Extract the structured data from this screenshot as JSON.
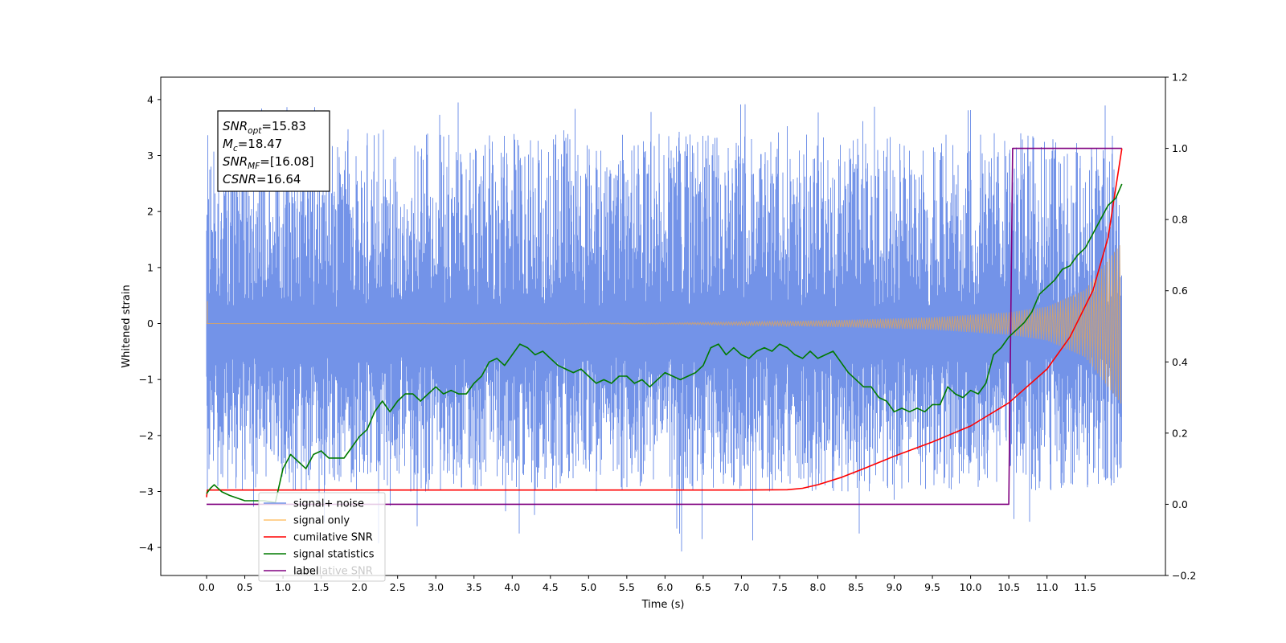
{
  "chart_data": {
    "type": "line",
    "xlabel": "Time (s)",
    "ylabel": "Whitened strain",
    "xlim": [
      -0.6,
      12.55
    ],
    "ylim": [
      -4.5,
      4.4
    ],
    "y2lim": [
      -0.2,
      1.2
    ],
    "x_ticks": [
      0.0,
      0.5,
      1.0,
      1.5,
      2.0,
      2.5,
      3.0,
      3.5,
      4.0,
      4.5,
      5.0,
      5.5,
      6.0,
      6.5,
      7.0,
      7.5,
      8.0,
      8.5,
      9.0,
      9.5,
      10.0,
      10.5,
      11.0,
      11.5
    ],
    "x_tick_labels": [
      "0.0",
      "0.5",
      "1.0",
      "1.5",
      "2.0",
      "2.5",
      "3.0",
      "3.5",
      "4.0",
      "4.5",
      "5.0",
      "5.5",
      "6.0",
      "6.5",
      "7.0",
      "7.5",
      "8.0",
      "8.5",
      "9.0",
      "9.5",
      "10.0",
      "10.5",
      "11.0",
      "11.5"
    ],
    "y_ticks": [
      -4,
      -3,
      -2,
      -1,
      0,
      1,
      2,
      3,
      4
    ],
    "y_tick_labels": [
      "−4",
      "−3",
      "−2",
      "−1",
      "0",
      "1",
      "2",
      "3",
      "4"
    ],
    "y2_ticks": [
      -0.2,
      0.0,
      0.2,
      0.4,
      0.6,
      0.8,
      1.0,
      1.2
    ],
    "y2_tick_labels": [
      "−0.2",
      "0.0",
      "0.2",
      "0.4",
      "0.6",
      "0.8",
      "1.0",
      "1.2"
    ],
    "annotation": {
      "lines": [
        {
          "main": "SNR",
          "sub": "opt",
          "rest": "=15.83"
        },
        {
          "main": "M",
          "sub": "c",
          "rest": "=18.47"
        },
        {
          "main": "SNR",
          "sub": "MF",
          "rest": "=[16.08]"
        },
        {
          "main": "CSNR",
          "sub": "",
          "rest": "=16.64"
        }
      ]
    },
    "legend": {
      "placement": "lower-left",
      "entries": [
        {
          "label": "signal+ noise",
          "color": "#7393e8"
        },
        {
          "label": "signal only",
          "color": "#ffc36e"
        },
        {
          "label": "cumilative SNR",
          "color": "#ff0000"
        },
        {
          "label": "signal statistics",
          "color": "#007a00"
        },
        {
          "label": "label",
          "color": "#800080"
        }
      ],
      "overlapped_text": "cumilative SNR"
    },
    "series": [
      {
        "name": "signal+ noise",
        "axis": "left",
        "color": "#7393e8",
        "noise_envelope": {
          "x": [
            0.0,
            11.98
          ],
          "low": -3.0,
          "high": 3.4,
          "peak_max": 4.0,
          "peak_min": -4.1
        }
      },
      {
        "name": "signal only",
        "axis": "left",
        "color": "#c8a07a",
        "chirp_envelope": {
          "x": [
            0,
            6,
            7.5,
            8.5,
            9.5,
            10.5,
            11.0,
            11.5,
            11.98
          ],
          "amp": [
            0.0,
            0.01,
            0.04,
            0.07,
            0.11,
            0.2,
            0.3,
            0.6,
            1.45
          ]
        }
      },
      {
        "name": "cumilative SNR",
        "axis": "right",
        "color": "#ff0000",
        "x": [
          0.0,
          0.01,
          2.0,
          4.0,
          6.0,
          7.0,
          7.6,
          7.8,
          8.0,
          8.3,
          8.6,
          9.0,
          9.5,
          10.0,
          10.5,
          11.0,
          11.3,
          11.6,
          11.8,
          11.98
        ],
        "y": [
          0.02,
          0.04,
          0.04,
          0.04,
          0.04,
          0.04,
          0.041,
          0.045,
          0.055,
          0.075,
          0.1,
          0.135,
          0.175,
          0.22,
          0.285,
          0.38,
          0.47,
          0.6,
          0.75,
          1.0
        ]
      },
      {
        "name": "signal statistics",
        "axis": "right",
        "color": "#007a00",
        "x": [
          0.0,
          0.05,
          0.1,
          0.2,
          0.3,
          0.5,
          0.75,
          0.9,
          1.0,
          1.1,
          1.2,
          1.3,
          1.4,
          1.5,
          1.6,
          1.7,
          1.8,
          1.9,
          2.0,
          2.1,
          2.2,
          2.3,
          2.4,
          2.5,
          2.6,
          2.7,
          2.8,
          2.9,
          3.0,
          3.1,
          3.2,
          3.3,
          3.4,
          3.5,
          3.6,
          3.7,
          3.8,
          3.9,
          4.0,
          4.1,
          4.2,
          4.3,
          4.4,
          4.5,
          4.6,
          4.7,
          4.8,
          4.9,
          5.0,
          5.1,
          5.2,
          5.3,
          5.4,
          5.5,
          5.6,
          5.7,
          5.8,
          5.9,
          6.0,
          6.1,
          6.2,
          6.3,
          6.4,
          6.5,
          6.6,
          6.7,
          6.8,
          6.9,
          7.0,
          7.1,
          7.2,
          7.3,
          7.4,
          7.5,
          7.6,
          7.7,
          7.8,
          7.9,
          8.0,
          8.1,
          8.2,
          8.3,
          8.4,
          8.5,
          8.6,
          8.7,
          8.8,
          8.9,
          9.0,
          9.1,
          9.2,
          9.3,
          9.4,
          9.5,
          9.6,
          9.7,
          9.8,
          9.9,
          10.0,
          10.1,
          10.2,
          10.3,
          10.4,
          10.5,
          10.6,
          10.7,
          10.8,
          10.9,
          11.0,
          11.1,
          11.2,
          11.3,
          11.4,
          11.5,
          11.6,
          11.7,
          11.8,
          11.9,
          11.98
        ],
        "y": [
          0.03,
          0.045,
          0.055,
          0.035,
          0.025,
          0.01,
          0.01,
          0.005,
          0.1,
          0.14,
          0.12,
          0.1,
          0.14,
          0.15,
          0.13,
          0.13,
          0.13,
          0.16,
          0.19,
          0.21,
          0.26,
          0.29,
          0.26,
          0.29,
          0.31,
          0.31,
          0.29,
          0.31,
          0.33,
          0.31,
          0.32,
          0.31,
          0.31,
          0.34,
          0.36,
          0.4,
          0.41,
          0.39,
          0.42,
          0.45,
          0.44,
          0.42,
          0.43,
          0.41,
          0.39,
          0.38,
          0.37,
          0.38,
          0.36,
          0.34,
          0.35,
          0.34,
          0.36,
          0.36,
          0.34,
          0.35,
          0.33,
          0.35,
          0.37,
          0.36,
          0.35,
          0.36,
          0.37,
          0.39,
          0.44,
          0.45,
          0.42,
          0.44,
          0.42,
          0.41,
          0.43,
          0.44,
          0.43,
          0.45,
          0.44,
          0.42,
          0.41,
          0.43,
          0.41,
          0.42,
          0.43,
          0.4,
          0.37,
          0.35,
          0.33,
          0.33,
          0.3,
          0.29,
          0.26,
          0.27,
          0.26,
          0.27,
          0.26,
          0.28,
          0.28,
          0.33,
          0.31,
          0.3,
          0.32,
          0.31,
          0.34,
          0.42,
          0.44,
          0.47,
          0.49,
          0.51,
          0.54,
          0.59,
          0.61,
          0.63,
          0.66,
          0.67,
          0.7,
          0.72,
          0.76,
          0.8,
          0.84,
          0.86,
          0.9
        ]
      },
      {
        "name": "label",
        "axis": "right",
        "color": "#800080",
        "x": [
          0.0,
          10.5,
          10.55,
          11.98
        ],
        "y": [
          0.0,
          0.0,
          1.0,
          1.0
        ]
      }
    ]
  }
}
